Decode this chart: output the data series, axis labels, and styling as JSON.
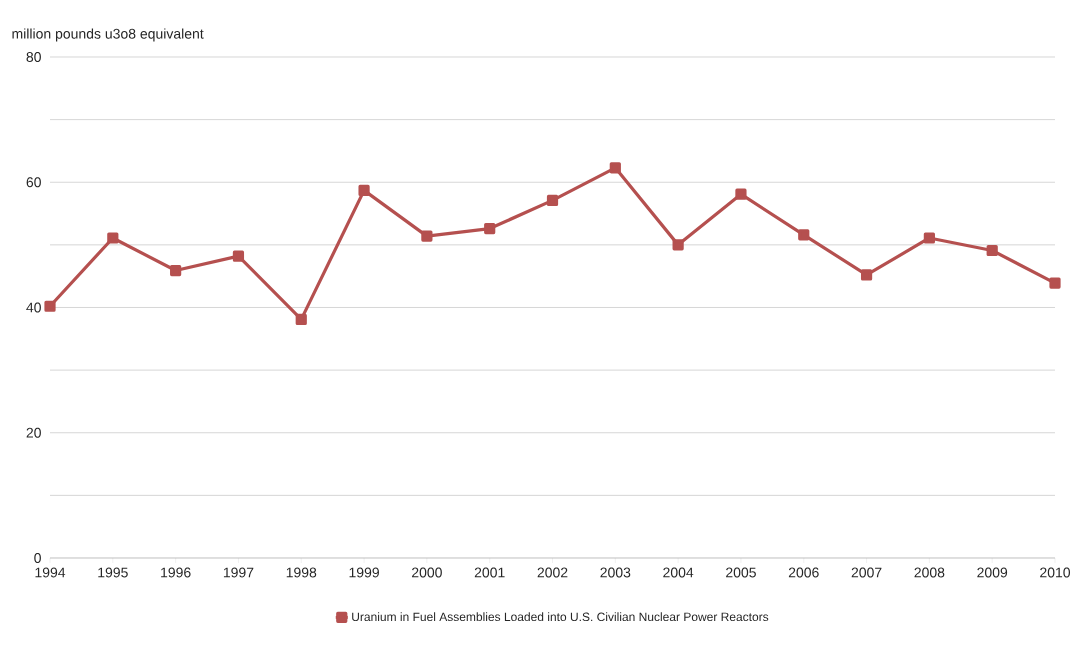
{
  "chart_data": {
    "type": "line",
    "ylabel": "million pounds u3o8 equivalent",
    "categories": [
      "1994",
      "1995",
      "1996",
      "1997",
      "1998",
      "1999",
      "2000",
      "2001",
      "2002",
      "2003",
      "2004",
      "2005",
      "2006",
      "2007",
      "2008",
      "2009",
      "2010"
    ],
    "series": [
      {
        "name": "Uranium in Fuel Assemblies Loaded into U.S. Civilian Nuclear Power Reactors",
        "color": "#b5504f",
        "values": [
          40.2,
          51.1,
          45.9,
          48.2,
          38.1,
          58.7,
          51.4,
          52.6,
          57.1,
          62.3,
          50.0,
          58.1,
          51.6,
          45.2,
          51.1,
          49.1,
          43.9
        ]
      }
    ],
    "ylim": [
      0,
      80
    ],
    "yticks": [
      0,
      {
        "value": 10,
        "label": null
      },
      20,
      {
        "value": 30,
        "label": null
      },
      40,
      {
        "value": 50,
        "label": null
      },
      60,
      {
        "value": 70,
        "label": null
      },
      80
    ],
    "grid": "y",
    "legend": "bottom",
    "marker": "square",
    "line_style": "solid"
  }
}
